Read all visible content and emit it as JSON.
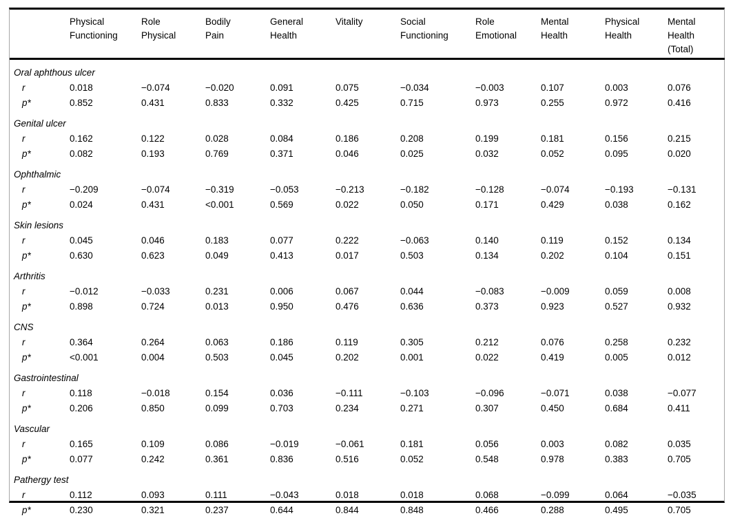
{
  "colors": {
    "rule": "#000000",
    "frame_side": "#a6a6a6",
    "text": "#000000",
    "background": "#ffffff"
  },
  "table": {
    "headers": [
      "",
      "Physical\nFunctioning",
      "Role\nPhysical",
      "Bodily\nPain",
      "General\nHealth",
      "Vitality",
      "Social\nFunctioning",
      "Role\nEmotional",
      "Mental\nHealth",
      "Physical\nHealth",
      "Mental\nHealth\n(Total)"
    ],
    "row_labels": {
      "r": "r",
      "p": "p*"
    },
    "sections": [
      {
        "label": "Oral aphthous ulcer",
        "r": [
          "0.018",
          "−0.074",
          "−0.020",
          "0.091",
          "0.075",
          "−0.034",
          "−0.003",
          "0.107",
          "0.003",
          "0.076"
        ],
        "p": [
          "0.852",
          "0.431",
          "0.833",
          "0.332",
          "0.425",
          "0.715",
          "0.973",
          "0.255",
          "0.972",
          "0.416"
        ]
      },
      {
        "label": "Genital ulcer",
        "r": [
          "0.162",
          "0.122",
          "0.028",
          "0.084",
          "0.186",
          "0.208",
          "0.199",
          "0.181",
          "0.156",
          "0.215"
        ],
        "p": [
          "0.082",
          "0.193",
          "0.769",
          "0.371",
          "0.046",
          "0.025",
          "0.032",
          "0.052",
          "0.095",
          "0.020"
        ]
      },
      {
        "label": "Ophthalmic",
        "r": [
          "−0.209",
          "−0.074",
          "−0.319",
          "−0.053",
          "−0.213",
          "−0.182",
          "−0.128",
          "−0.074",
          "−0.193",
          "−0.131"
        ],
        "p": [
          "0.024",
          "0.431",
          "<0.001",
          "0.569",
          "0.022",
          "0.050",
          "0.171",
          "0.429",
          "0.038",
          "0.162"
        ]
      },
      {
        "label": "Skin lesions",
        "r": [
          "0.045",
          "0.046",
          "0.183",
          "0.077",
          "0.222",
          "−0.063",
          "0.140",
          "0.119",
          "0.152",
          "0.134"
        ],
        "p": [
          "0.630",
          "0.623",
          "0.049",
          "0.413",
          "0.017",
          "0.503",
          "0.134",
          "0.202",
          "0.104",
          "0.151"
        ]
      },
      {
        "label": "Arthritis",
        "r": [
          "−0.012",
          "−0.033",
          "0.231",
          "0.006",
          "0.067",
          "0.044",
          "−0.083",
          "−0.009",
          "0.059",
          "0.008"
        ],
        "p": [
          "0.898",
          "0.724",
          "0.013",
          "0.950",
          "0.476",
          "0.636",
          "0.373",
          "0.923",
          "0.527",
          "0.932"
        ]
      },
      {
        "label": "CNS",
        "r": [
          "0.364",
          "0.264",
          "0.063",
          "0.186",
          "0.119",
          "0.305",
          "0.212",
          "0.076",
          "0.258",
          "0.232"
        ],
        "p": [
          "<0.001",
          "0.004",
          "0.503",
          "0.045",
          "0.202",
          "0.001",
          "0.022",
          "0.419",
          "0.005",
          "0.012"
        ]
      },
      {
        "label": "Gastrointestinal",
        "r": [
          "0.118",
          "−0.018",
          "0.154",
          "0.036",
          "−0.111",
          "−0.103",
          "−0.096",
          "−0.071",
          "0.038",
          "−0.077"
        ],
        "p": [
          "0.206",
          "0.850",
          "0.099",
          "0.703",
          "0.234",
          "0.271",
          "0.307",
          "0.450",
          "0.684",
          "0.411"
        ]
      },
      {
        "label": "Vascular",
        "r": [
          "0.165",
          "0.109",
          "0.086",
          "−0.019",
          "−0.061",
          "0.181",
          "0.056",
          "0.003",
          "0.082",
          "0.035"
        ],
        "p": [
          "0.077",
          "0.242",
          "0.361",
          "0.836",
          "0.516",
          "0.052",
          "0.548",
          "0.978",
          "0.383",
          "0.705"
        ]
      },
      {
        "label": "Pathergy test",
        "r": [
          "0.112",
          "0.093",
          "0.111",
          "−0.043",
          "0.018",
          "0.018",
          "0.068",
          "−0.099",
          "0.064",
          "−0.035"
        ],
        "p": [
          "0.230",
          "0.321",
          "0.237",
          "0.644",
          "0.844",
          "0.848",
          "0.466",
          "0.288",
          "0.495",
          "0.705"
        ]
      }
    ]
  }
}
